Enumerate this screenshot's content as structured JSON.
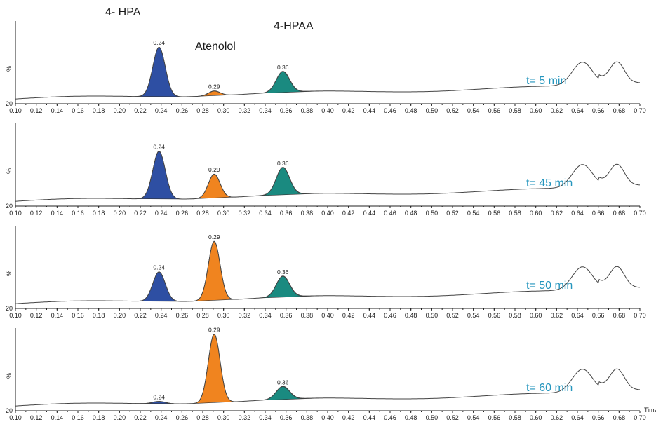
{
  "chart_data": {
    "type": "line",
    "x_axis_label": "Time",
    "x_ticks": [
      "0.10",
      "0.12",
      "0.14",
      "0.16",
      "0.18",
      "0.20",
      "0.22",
      "0.24",
      "0.26",
      "0.28",
      "0.30",
      "0.32",
      "0.34",
      "0.36",
      "0.38",
      "0.40",
      "0.42",
      "0.44",
      "0.46",
      "0.48",
      "0.50",
      "0.52",
      "0.54",
      "0.56",
      "0.58",
      "0.60",
      "0.62",
      "0.64",
      "0.66",
      "0.68",
      "0.70"
    ],
    "xlim": [
      0.1,
      0.7
    ],
    "y_axis_label": "%",
    "y_min_label": "20",
    "compound_labels": [
      {
        "name": "4- HPA",
        "x": 0.24
      },
      {
        "name": "Atenolol",
        "x": 0.29
      },
      {
        "name": "4-HPAA",
        "x": 0.36
      }
    ],
    "peak_colors": [
      "#2e4fa3",
      "#f0841f",
      "#1a8a80"
    ],
    "panels": [
      {
        "label": "t= 5 min",
        "peaks": [
          {
            "rt": "0.24",
            "height": 0.62
          },
          {
            "rt": "0.29",
            "height": 0.06
          },
          {
            "rt": "0.36",
            "height": 0.26
          }
        ]
      },
      {
        "label": "t= 45 min",
        "peaks": [
          {
            "rt": "0.24",
            "height": 0.6
          },
          {
            "rt": "0.29",
            "height": 0.3
          },
          {
            "rt": "0.36",
            "height": 0.34
          }
        ]
      },
      {
        "label": "t= 50 min",
        "peaks": [
          {
            "rt": "0.24",
            "height": 0.37
          },
          {
            "rt": "0.29",
            "height": 0.74
          },
          {
            "rt": "0.36",
            "height": 0.26
          }
        ]
      },
      {
        "label": "t= 60 min",
        "peaks": [
          {
            "rt": "0.24",
            "height": 0.03
          },
          {
            "rt": "0.29",
            "height": 0.86
          },
          {
            "rt": "0.36",
            "height": 0.16
          }
        ]
      }
    ]
  }
}
